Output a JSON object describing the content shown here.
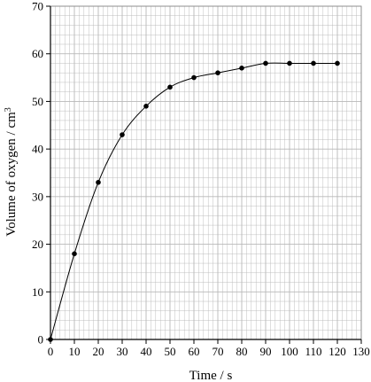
{
  "chart_data": {
    "type": "scatter",
    "title": "",
    "xlabel": "Time / s",
    "ylabel_main": "Volume of oxygen / cm",
    "ylabel_superscript": "3",
    "xlim": [
      0,
      130
    ],
    "ylim": [
      0,
      70
    ],
    "xticks": [
      0,
      10,
      20,
      30,
      40,
      50,
      60,
      70,
      80,
      90,
      100,
      110,
      120,
      130
    ],
    "yticks": [
      0,
      10,
      20,
      30,
      40,
      50,
      60,
      70
    ],
    "grid": true,
    "minor_grid_step": 2,
    "series": [
      {
        "x": [
          0,
          10,
          20,
          30,
          40,
          50,
          60,
          70,
          80,
          90,
          100,
          110,
          120
        ],
        "y": [
          0,
          18,
          33,
          43,
          49,
          53,
          55,
          56,
          57,
          58,
          58,
          58,
          58
        ],
        "marker": "dot",
        "line": "smooth curve"
      }
    ],
    "colors": {
      "grid": "#b8b8b8",
      "axis": "#000000",
      "points": "#000000",
      "curve": "#000000"
    }
  }
}
